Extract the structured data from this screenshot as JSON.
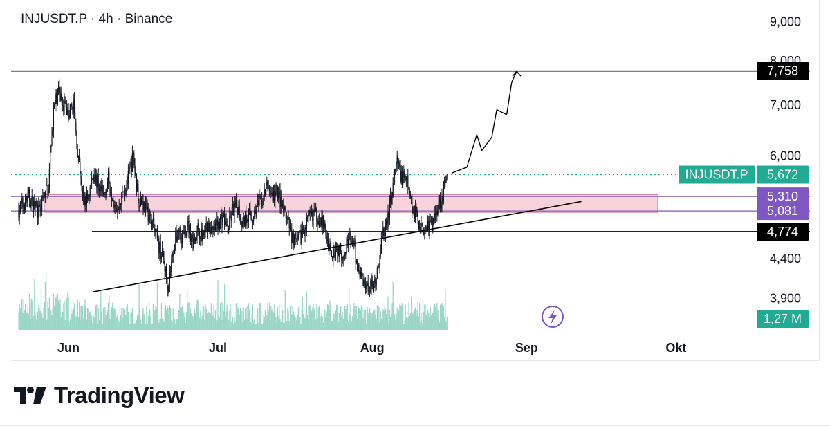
{
  "header": {
    "symbol_title": "INJUSDT.P · 4h · Binance"
  },
  "colors": {
    "candle": "#131722",
    "volume": "#9ad6c4",
    "accent_green": "#22ab94",
    "zone_fill": "#f8d3da",
    "zone_border": "#d87b8f",
    "purple": "#7e57c2",
    "level_line": "#000000",
    "dotted_price": "#22ab94"
  },
  "chart_data": {
    "type": "candlestick",
    "symbol": "INJUSDT.P",
    "interval": "4h",
    "exchange": "Binance",
    "y_ticks": [
      9000,
      8000,
      7000,
      6000,
      4400,
      3900
    ],
    "y_tick_labels": [
      "9,000",
      "8,000",
      "7,000",
      "6,000",
      "4,400",
      "3,900"
    ],
    "y_scale": "log",
    "ylim": [
      3550,
      9500
    ],
    "x_ticks": [
      {
        "label": "Jun",
        "day": 0
      },
      {
        "label": "Jul",
        "day": 30
      },
      {
        "label": "Aug",
        "day": 61
      },
      {
        "label": "Sep",
        "day": 92
      },
      {
        "label": "Okt",
        "day": 122
      }
    ],
    "price_path": [
      [
        -10,
        5100
      ],
      [
        -8,
        5300
      ],
      [
        -6,
        5050
      ],
      [
        -4,
        5500
      ],
      [
        -3,
        6900
      ],
      [
        -2,
        7300
      ],
      [
        0,
        6800
      ],
      [
        1,
        7000
      ],
      [
        2,
        5900
      ],
      [
        3,
        5200
      ],
      [
        4,
        5300
      ],
      [
        5,
        5700
      ],
      [
        6,
        5500
      ],
      [
        7,
        5300
      ],
      [
        8,
        5600
      ],
      [
        9,
        5300
      ],
      [
        10,
        5100
      ],
      [
        11,
        5400
      ],
      [
        12,
        5600
      ],
      [
        13,
        6000
      ],
      [
        14,
        5300
      ],
      [
        15,
        5200
      ],
      [
        16,
        5050
      ],
      [
        17,
        4850
      ],
      [
        18,
        4600
      ],
      [
        19,
        4400
      ],
      [
        20,
        4050
      ],
      [
        21,
        4500
      ],
      [
        22,
        4800
      ],
      [
        23,
        4700
      ],
      [
        24,
        4850
      ],
      [
        25,
        4650
      ],
      [
        26,
        4800
      ],
      [
        27,
        4700
      ],
      [
        28,
        4900
      ],
      [
        29,
        4750
      ],
      [
        30,
        4900
      ],
      [
        31,
        5000
      ],
      [
        32,
        4800
      ],
      [
        33,
        5100
      ],
      [
        34,
        5150
      ],
      [
        35,
        4900
      ],
      [
        36,
        5050
      ],
      [
        37,
        5000
      ],
      [
        38,
        5150
      ],
      [
        39,
        5250
      ],
      [
        40,
        5500
      ],
      [
        41,
        5300
      ],
      [
        42,
        5400
      ],
      [
        43,
        5100
      ],
      [
        44,
        4900
      ],
      [
        45,
        4700
      ],
      [
        46,
        4600
      ],
      [
        47,
        4800
      ],
      [
        48,
        4900
      ],
      [
        49,
        5050
      ],
      [
        50,
        5000
      ],
      [
        51,
        4900
      ],
      [
        52,
        4650
      ],
      [
        53,
        4500
      ],
      [
        54,
        4550
      ],
      [
        55,
        4450
      ],
      [
        56,
        4650
      ],
      [
        57,
        4650
      ],
      [
        58,
        4300
      ],
      [
        59,
        4150
      ],
      [
        60,
        4050
      ],
      [
        61,
        4050
      ],
      [
        62,
        4200
      ],
      [
        63,
        4700
      ],
      [
        64,
        4900
      ],
      [
        65,
        5400
      ],
      [
        66,
        5900
      ],
      [
        67,
        5600
      ],
      [
        68,
        5550
      ],
      [
        69,
        5150
      ],
      [
        70,
        5000
      ],
      [
        71,
        4800
      ],
      [
        72,
        4900
      ],
      [
        73,
        4850
      ],
      [
        74,
        5150
      ],
      [
        75,
        5300
      ],
      [
        76,
        5672
      ]
    ],
    "volume_note": "volume histogram shown at bottom of pane",
    "horizontal_levels": [
      {
        "value": 7758,
        "label": "7,758",
        "style": "solid",
        "tag_color": "#000000"
      },
      {
        "value": 5310,
        "label": "5,310",
        "style": "purple",
        "tag_color": "#7e57c2"
      },
      {
        "value": 5081,
        "label": "5,081",
        "style": "purple",
        "tag_color": "#7e57c2"
      },
      {
        "value": 4774,
        "label": "4,774",
        "style": "solid",
        "tag_color": "#000000"
      }
    ],
    "demand_zone": {
      "top": 5340,
      "bottom": 5060
    },
    "trendline": {
      "from": [
        5,
        3980
      ],
      "to": [
        103,
        5230
      ]
    },
    "projection_path": [
      [
        77,
        5700
      ],
      [
        80,
        5800
      ],
      [
        82,
        6400
      ],
      [
        83,
        6100
      ],
      [
        85,
        6350
      ],
      [
        86,
        6900
      ],
      [
        88,
        6800
      ],
      [
        89,
        7500
      ],
      [
        90,
        7750
      ]
    ],
    "last_price": {
      "symbol_label": "INJUSDT.P",
      "value_label": "5,672",
      "value": 5672
    },
    "volume_tag": "1,27 M"
  },
  "footer": {
    "brand": "TradingView"
  }
}
